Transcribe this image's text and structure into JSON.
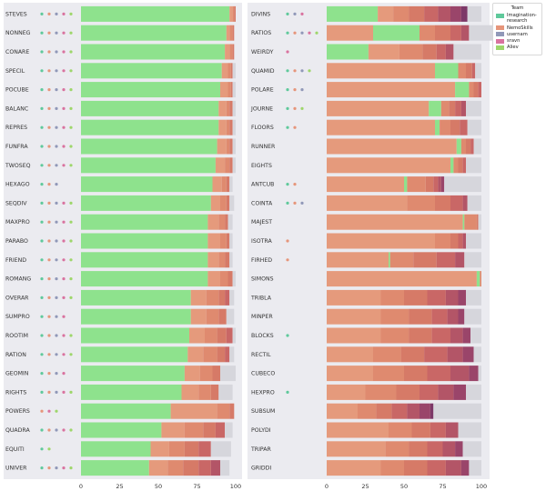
{
  "chart_data": {
    "type": "bar",
    "orientation": "horizontal",
    "stacked": true,
    "xlim": [
      0,
      100
    ],
    "x_ticks": [
      "0",
      "25",
      "50",
      "75",
      "100"
    ],
    "grid": false,
    "legend_placement": "top-right",
    "legend": {
      "title": "Team",
      "entries": [
        {
          "name": "Imagination-research",
          "color": "#5fc99b"
        },
        {
          "name": "NemoSkills",
          "color": "#e6957a"
        },
        {
          "name": "usernam",
          "color": "#9098b8"
        },
        {
          "name": "sravn",
          "color": "#d9739f"
        },
        {
          "name": "Aliev",
          "color": "#9ed66b"
        }
      ]
    },
    "segment_palette": [
      "#e59a7c",
      "#df8a6f",
      "#d67a67",
      "#c96766",
      "#b35567",
      "#9a456a",
      "#7d3868",
      "#5e2c5f"
    ],
    "panels": [
      {
        "bars": [
          {
            "label": "STEVES",
            "green": 96,
            "segs": [
              2,
              1,
              1
            ],
            "gray": 0,
            "dots": [
              "#5fc99b",
              "#e6957a",
              "#9098b8",
              "#d9739f",
              "#9ed66b"
            ]
          },
          {
            "label": "NONNEG",
            "green": 94,
            "segs": [
              2,
              2,
              1
            ],
            "gray": 0,
            "dots": [
              "#5fc99b",
              "#e6957a",
              "#9098b8",
              "#d9739f",
              "#9ed66b"
            ]
          },
          {
            "label": "CONARE",
            "green": 93,
            "segs": [
              3,
              2,
              1
            ],
            "gray": 0,
            "dots": [
              "#5fc99b",
              "#e6957a",
              "#9098b8",
              "#d9739f",
              "#9ed66b"
            ]
          },
          {
            "label": "SPECIL",
            "green": 91,
            "segs": [
              4,
              2,
              1
            ],
            "gray": 2,
            "dots": [
              "#5fc99b",
              "#e6957a",
              "#9098b8",
              "#d9739f",
              "#9ed66b"
            ]
          },
          {
            "label": "POCUBE",
            "green": 90,
            "segs": [
              5,
              2,
              1
            ],
            "gray": 2,
            "dots": [
              "#5fc99b",
              "#e6957a",
              "#9098b8",
              "#d9739f",
              "#9ed66b"
            ]
          },
          {
            "label": "BALANC",
            "green": 89,
            "segs": [
              5,
              2,
              2
            ],
            "gray": 2,
            "dots": [
              "#5fc99b",
              "#e6957a",
              "#9098b8",
              "#d9739f",
              "#9ed66b"
            ]
          },
          {
            "label": "REPRES",
            "green": 89,
            "segs": [
              5,
              2,
              2
            ],
            "gray": 2,
            "dots": [
              "#5fc99b",
              "#e6957a",
              "#9098b8",
              "#d9739f",
              "#9ed66b"
            ]
          },
          {
            "label": "FUNFRA",
            "green": 88,
            "segs": [
              6,
              2,
              2
            ],
            "gray": 2,
            "dots": [
              "#5fc99b",
              "#e6957a",
              "#9098b8",
              "#d9739f",
              "#9ed66b"
            ]
          },
          {
            "label": "TWOSEQ",
            "green": 87,
            "segs": [
              6,
              3,
              2
            ],
            "gray": 2,
            "dots": [
              "#5fc99b",
              "#e6957a",
              "#9098b8",
              "#d9739f",
              "#9ed66b"
            ]
          },
          {
            "label": "HEXAGO",
            "green": 85,
            "segs": [
              6,
              3,
              2
            ],
            "gray": 2,
            "dots": [
              "#5fc99b",
              "#e6957a",
              "#9098b8"
            ]
          },
          {
            "label": "SEQDIV",
            "green": 84,
            "segs": [
              6,
              4,
              2
            ],
            "gray": 3,
            "dots": [
              "#5fc99b",
              "#e6957a",
              "#9098b8",
              "#d9739f",
              "#9ed66b"
            ]
          },
          {
            "label": "MAXPRO",
            "green": 82,
            "segs": [
              7,
              4,
              2
            ],
            "gray": 3,
            "dots": [
              "#5fc99b",
              "#e6957a",
              "#9098b8",
              "#d9739f",
              "#9ed66b"
            ]
          },
          {
            "label": "PARABO",
            "green": 82,
            "segs": [
              8,
              4,
              2
            ],
            "gray": 2,
            "dots": [
              "#5fc99b",
              "#e6957a",
              "#9098b8",
              "#d9739f",
              "#9ed66b"
            ]
          },
          {
            "label": "FRIEND",
            "green": 82,
            "segs": [
              7,
              4,
              3
            ],
            "gray": 2,
            "dots": [
              "#5fc99b",
              "#e6957a",
              "#9098b8",
              "#d9739f",
              "#9ed66b"
            ]
          },
          {
            "label": "ROMANG",
            "green": 82,
            "segs": [
              8,
              5,
              3
            ],
            "gray": 2,
            "dots": [
              "#5fc99b",
              "#e6957a",
              "#9098b8",
              "#d9739f",
              "#9ed66b"
            ]
          },
          {
            "label": "OVERAR",
            "green": 71,
            "segs": [
              10,
              8,
              4,
              3
            ],
            "gray": 3,
            "dots": [
              "#5fc99b",
              "#e6957a",
              "#9098b8",
              "#d9739f",
              "#9ed66b"
            ]
          },
          {
            "label": "SUMPRO",
            "green": 71,
            "segs": [
              10,
              8,
              5
            ],
            "gray": 5,
            "dots": [
              "#5fc99b",
              "#e6957a",
              "#9098b8",
              "#d9739f"
            ]
          },
          {
            "label": "ROOTIM",
            "green": 70,
            "segs": [
              10,
              8,
              6,
              4
            ],
            "gray": 2,
            "dots": [
              "#5fc99b",
              "#e6957a",
              "#9098b8",
              "#d9739f",
              "#9ed66b"
            ]
          },
          {
            "label": "RATION",
            "green": 69,
            "segs": [
              10,
              9,
              5,
              3
            ],
            "gray": 3,
            "dots": [
              "#5fc99b",
              "#e6957a",
              "#9098b8",
              "#d9739f",
              "#9ed66b"
            ]
          },
          {
            "label": "GEOMIN",
            "green": 67,
            "segs": [
              10,
              8,
              5
            ],
            "gray": 10,
            "dots": [
              "#5fc99b",
              "#e6957a",
              "#9098b8",
              "#d9739f"
            ]
          },
          {
            "label": "RIGHTS",
            "green": 65,
            "segs": [
              11,
              8,
              5
            ],
            "gray": 9,
            "dots": [
              "#5fc99b",
              "#e6957a",
              "#9098b8",
              "#d9739f",
              "#9ed66b"
            ]
          },
          {
            "label": "POWERS",
            "green": 58,
            "segs": [
              30,
              8,
              3
            ],
            "gray": 0,
            "dots": [
              "#e6957a",
              "#d9739f",
              "#9ed66b"
            ]
          },
          {
            "label": "QUADRA",
            "green": 52,
            "segs": [
              15,
              12,
              8,
              6
            ],
            "gray": 5,
            "dots": [
              "#5fc99b",
              "#e6957a",
              "#9098b8",
              "#d9739f",
              "#9ed66b"
            ]
          },
          {
            "label": "EQUITI",
            "green": 45,
            "segs": [
              12,
              10,
              9,
              8
            ],
            "gray": 13,
            "dots": [
              "#5fc99b",
              "#9ed66b"
            ]
          },
          {
            "label": "UNIVER",
            "green": 44,
            "segs": [
              12,
              10,
              10,
              8,
              6
            ],
            "gray": 6,
            "dots": [
              "#5fc99b",
              "#e6957a",
              "#9098b8",
              "#d9739f",
              "#9ed66b"
            ]
          }
        ]
      },
      {
        "bars": [
          {
            "label": "DIVINS",
            "green": 33,
            "segs": [
              10,
              10,
              10,
              9,
              8,
              7,
              4
            ],
            "gray": 9,
            "dots": [
              "#5fc99b",
              "#9098b8",
              "#d9739f"
            ]
          },
          {
            "label": "RATIOS",
            "green": 0,
            "green_after": 30,
            "segs": [
              30,
              10,
              10,
              7,
              5
            ],
            "gray": 18,
            "dots": [
              "#5fc99b",
              "#e6957a",
              "#9098b8",
              "#d9739f",
              "#9ed66b"
            ]
          },
          {
            "label": "WEIRDY",
            "green": 27,
            "segs": [
              20,
              15,
              9,
              6,
              5
            ],
            "gray": 18,
            "dots": [
              "#d9739f"
            ]
          },
          {
            "label": "QUAMID",
            "green": 0,
            "green_after": 15,
            "segs": [
              70,
              5,
              4,
              2
            ],
            "gray": 4,
            "dots": [
              "#5fc99b",
              "#e6957a",
              "#9098b8",
              "#9ed66b"
            ]
          },
          {
            "label": "POLARE",
            "green": 0,
            "green_after": 9,
            "segs": [
              83,
              3,
              3,
              2
            ],
            "gray": 0,
            "dots": [
              "#5fc99b",
              "#e6957a",
              "#9098b8"
            ]
          },
          {
            "label": "JOURNE",
            "green": 0,
            "green_after": 8,
            "segs": [
              66,
              5,
              4,
              4,
              3
            ],
            "gray": 10,
            "dots": [
              "#5fc99b",
              "#e6957a",
              "#9ed66b"
            ]
          },
          {
            "label": "FLOORS",
            "green": 0,
            "green_after": 3,
            "segs": [
              70,
              7,
              6,
              5
            ],
            "gray": 9,
            "dots": [
              "#5fc99b",
              "#e6957a"
            ]
          },
          {
            "label": "RUNNER",
            "green": 0,
            "green_after": 3,
            "segs": [
              84,
              3,
              3,
              2
            ],
            "gray": 5,
            "dots": []
          },
          {
            "label": "EIGHTS",
            "green": 0,
            "green_after": 2,
            "segs": [
              80,
              3,
              3,
              2
            ],
            "gray": 10,
            "dots": []
          },
          {
            "label": "ANTCUB",
            "green": 0,
            "green_after": 2,
            "segs": [
              50,
              12,
              5,
              3,
              2,
              2
            ],
            "gray": 24,
            "dots": [
              "#5fc99b",
              "#e6957a"
            ]
          },
          {
            "label": "COINTA",
            "green": 0,
            "segs": [
              52,
              18,
              10,
              8,
              3
            ],
            "gray": 9,
            "dots": [
              "#5fc99b",
              "#e6957a",
              "#9098b8"
            ]
          },
          {
            "label": "MAJEST",
            "green": 0,
            "green_after": 1,
            "segs": [
              88,
              8,
              1
            ],
            "gray": 2,
            "dots": []
          },
          {
            "label": "ISOTRA",
            "green": 0,
            "segs": [
              70,
              10,
              5,
              3,
              2
            ],
            "gray": 10,
            "dots": [
              "#e6957a"
            ]
          },
          {
            "label": "FIRHED",
            "green": 0,
            "green_after": 1,
            "segs": [
              40,
              15,
              15,
              12,
              6
            ],
            "gray": 11,
            "dots": [
              "#e6957a"
            ]
          },
          {
            "label": "SIMONS",
            "green": 0,
            "green_after": 2,
            "segs": [
              97,
              1
            ],
            "gray": 0,
            "dots": []
          },
          {
            "label": "TRIBLA",
            "green": 0,
            "segs": [
              35,
              15,
              15,
              12,
              8,
              5
            ],
            "gray": 10,
            "dots": []
          },
          {
            "label": "MINPER",
            "green": 0,
            "segs": [
              35,
              18,
              15,
              10,
              7,
              4
            ],
            "gray": 11,
            "dots": []
          },
          {
            "label": "BLOCKS",
            "green": 0,
            "segs": [
              35,
              18,
              15,
              12,
              8,
              5
            ],
            "gray": 7,
            "dots": [
              "#5fc99b"
            ]
          },
          {
            "label": "RECTIL",
            "green": 0,
            "segs": [
              30,
              18,
              15,
              15,
              10,
              7
            ],
            "gray": 5,
            "dots": []
          },
          {
            "label": "CUBECO",
            "green": 0,
            "segs": [
              30,
              20,
              15,
              15,
              12,
              6
            ],
            "gray": 2,
            "dots": []
          },
          {
            "label": "HEXPRO",
            "green": 0,
            "segs": [
              25,
              20,
              15,
              12,
              10,
              8
            ],
            "gray": 10,
            "dots": [
              "#5fc99b"
            ]
          },
          {
            "label": "SUBSUM",
            "green": 0,
            "segs": [
              20,
              12,
              10,
              10,
              8,
              7,
              2
            ],
            "gray": 31,
            "dots": []
          },
          {
            "label": "POLYDI",
            "green": 0,
            "segs": [
              40,
              15,
              12,
              10,
              8
            ],
            "gray": 15,
            "dots": []
          },
          {
            "label": "TRIPAR",
            "green": 0,
            "segs": [
              38,
              15,
              12,
              10,
              8,
              5
            ],
            "gray": 12,
            "dots": []
          },
          {
            "label": "GRIDDI",
            "green": 0,
            "segs": [
              35,
              15,
              15,
              12,
              10,
              5
            ],
            "gray": 8,
            "dots": []
          }
        ]
      }
    ]
  }
}
